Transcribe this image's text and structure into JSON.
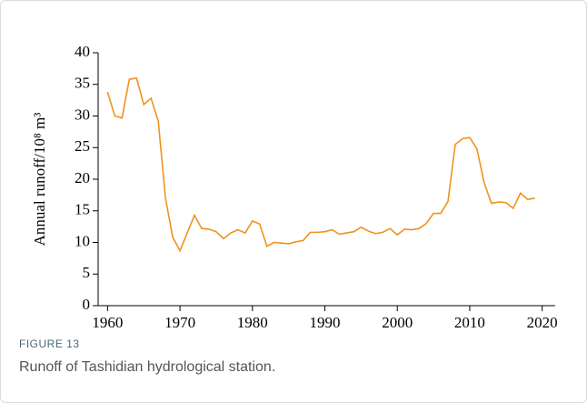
{
  "chart_data": {
    "type": "line",
    "y_label": "Annual runoff/10⁸ m³",
    "x": [
      1960,
      1961,
      1962,
      1963,
      1964,
      1965,
      1966,
      1967,
      1968,
      1969,
      1970,
      1971,
      1972,
      1973,
      1974,
      1975,
      1976,
      1977,
      1978,
      1979,
      1980,
      1981,
      1982,
      1983,
      1984,
      1985,
      1986,
      1987,
      1988,
      1989,
      1990,
      1991,
      1992,
      1993,
      1994,
      1995,
      1996,
      1997,
      1998,
      1999,
      2000,
      2001,
      2002,
      2003,
      2004,
      2005,
      2006,
      2007,
      2008,
      2009,
      2010,
      2011,
      2012,
      2013,
      2014,
      2015,
      2016,
      2017,
      2018,
      2019
    ],
    "values": [
      33.8,
      30.0,
      29.7,
      35.8,
      36.0,
      31.8,
      32.8,
      29.2,
      17.0,
      10.8,
      8.7,
      11.5,
      14.3,
      12.2,
      12.1,
      11.7,
      10.6,
      11.5,
      12.0,
      11.5,
      13.4,
      12.9,
      9.4,
      10.0,
      9.9,
      9.8,
      10.1,
      10.3,
      11.6,
      11.6,
      11.7,
      12.0,
      11.3,
      11.5,
      11.7,
      12.4,
      11.8,
      11.4,
      11.6,
      12.2,
      11.2,
      12.1,
      12.0,
      12.2,
      13.0,
      14.6,
      14.6,
      16.5,
      25.5,
      26.4,
      26.6,
      24.8,
      19.4,
      16.2,
      16.4,
      16.3,
      15.4,
      17.8,
      16.8,
      17.0
    ],
    "color": "#f0921e",
    "xlim": [
      1958.7,
      2021.8
    ],
    "xticks": [
      1960,
      1970,
      1980,
      1990,
      2000,
      2010,
      2020
    ],
    "ylim": [
      0,
      40
    ],
    "yticks": [
      0,
      5,
      10,
      15,
      20,
      25,
      30,
      35,
      40
    ]
  },
  "caption": {
    "label": "FIGURE 13",
    "text": "Runoff of Tashidian hydrological station."
  }
}
